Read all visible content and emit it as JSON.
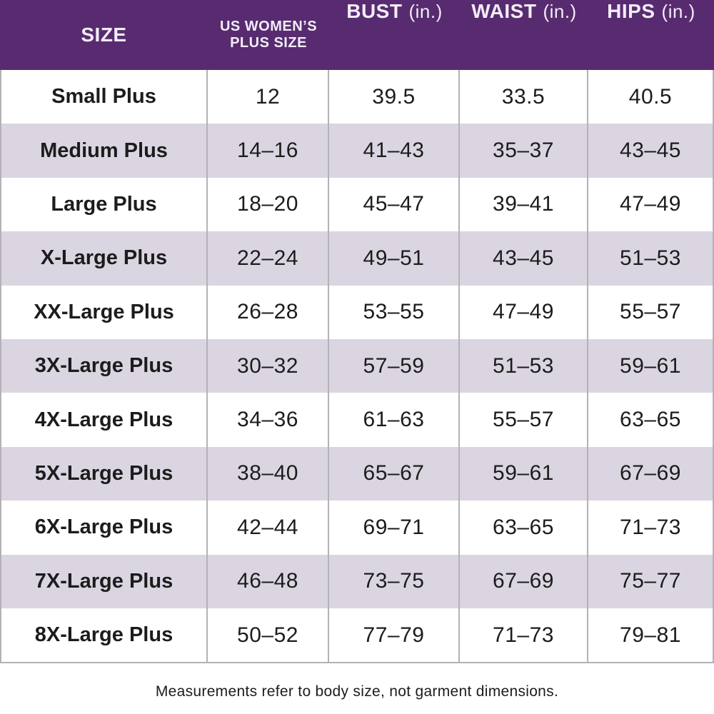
{
  "colors": {
    "header_bg": "#582b70",
    "header_text": "#f2edf6",
    "row_alt_bg": "#dbd5e1",
    "row_bg": "#ffffff",
    "border": "#b4b2b6",
    "body_text": "#1c1c1c"
  },
  "header": {
    "size_label": "SIZE",
    "plus_size_line1": "US WOMEN’S",
    "plus_size_line2": "PLUS SIZE",
    "bust_label": "BUST",
    "bust_unit": "(in.)",
    "waist_label": "WAIST",
    "waist_unit": "(in.)",
    "hips_label": "HIPS",
    "hips_unit": "(in.)"
  },
  "footer": {
    "note": "Measurements refer to body size, not garment dimensions."
  },
  "chart_data": {
    "type": "table",
    "title": "US Women's Plus Size Chart",
    "columns": [
      "SIZE",
      "US WOMEN'S PLUS SIZE",
      "BUST (in.)",
      "WAIST (in.)",
      "HIPS (in.)"
    ],
    "rows": [
      [
        "Small Plus",
        "12",
        "39.5",
        "33.5",
        "40.5"
      ],
      [
        "Medium Plus",
        "14–16",
        "41–43",
        "35–37",
        "43–45"
      ],
      [
        "Large Plus",
        "18–20",
        "45–47",
        "39–41",
        "47–49"
      ],
      [
        "X-Large Plus",
        "22–24",
        "49–51",
        "43–45",
        "51–53"
      ],
      [
        "XX-Large Plus",
        "26–28",
        "53–55",
        "47–49",
        "55–57"
      ],
      [
        "3X-Large Plus",
        "30–32",
        "57–59",
        "51–53",
        "59–61"
      ],
      [
        "4X-Large Plus",
        "34–36",
        "61–63",
        "55–57",
        "63–65"
      ],
      [
        "5X-Large Plus",
        "38–40",
        "65–67",
        "59–61",
        "67–69"
      ],
      [
        "6X-Large Plus",
        "42–44",
        "69–71",
        "63–65",
        "71–73"
      ],
      [
        "7X-Large Plus",
        "46–48",
        "73–75",
        "67–69",
        "75–77"
      ],
      [
        "8X-Large Plus",
        "50–52",
        "77–79",
        "71–73",
        "79–81"
      ]
    ]
  }
}
